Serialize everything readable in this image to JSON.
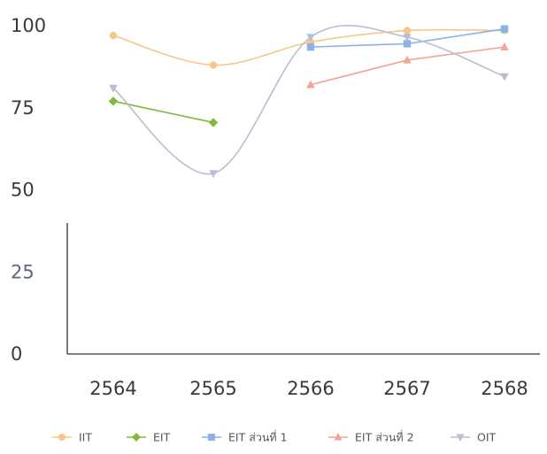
{
  "chart_data": {
    "type": "line",
    "title": "",
    "xlabel": "",
    "ylabel": "",
    "categories": [
      "2564",
      "2565",
      "2566",
      "2567",
      "2568"
    ],
    "ylim": [
      0,
      100
    ],
    "yticks": [
      0,
      25,
      50,
      75,
      100
    ],
    "grid": false,
    "legend_position": "bottom",
    "series": [
      {
        "name": "IIT",
        "color": "#f7c78a",
        "marker": "circle",
        "smooth": true,
        "values": [
          97,
          88,
          95,
          98.5,
          98.5
        ]
      },
      {
        "name": "EIT",
        "color": "#7fba3c",
        "marker": "diamond",
        "smooth": false,
        "values": [
          77,
          70.5,
          null,
          null,
          null
        ]
      },
      {
        "name": "EIT ส่วนที่ 1",
        "color": "#8ab4e6",
        "marker": "square",
        "smooth": false,
        "values": [
          null,
          null,
          93.5,
          94.5,
          99
        ]
      },
      {
        "name": "EIT ส่วนที่ 2",
        "color": "#f2a593",
        "marker": "triangle",
        "smooth": false,
        "values": [
          null,
          null,
          82,
          89.5,
          93.5
        ]
      },
      {
        "name": "OIT",
        "color": "#b9bdd2",
        "marker": "triangle-down",
        "smooth": true,
        "values": [
          81,
          55,
          96.5,
          96.5,
          84.5
        ]
      }
    ]
  }
}
